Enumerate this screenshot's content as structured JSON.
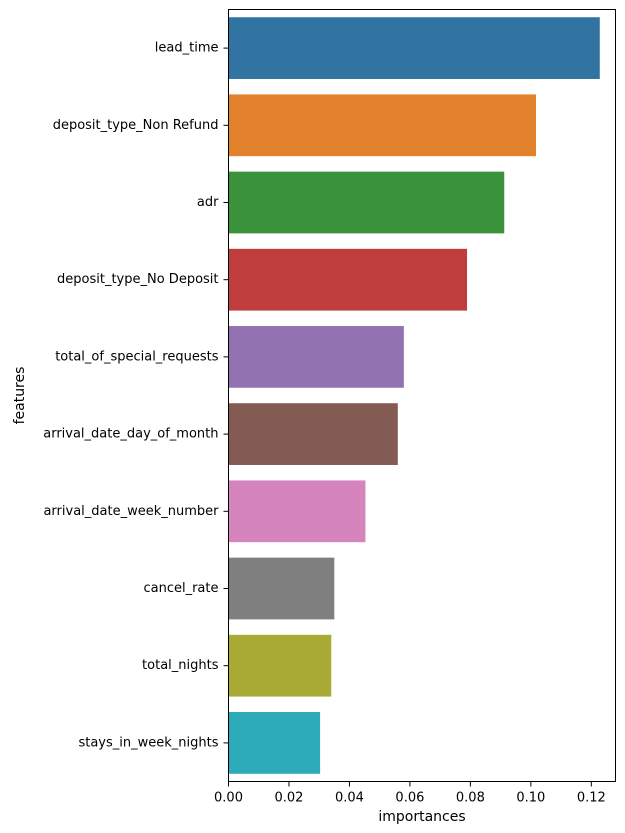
{
  "chart_data": {
    "type": "bar",
    "orientation": "horizontal",
    "title": "",
    "xlabel": "importances",
    "ylabel": "features",
    "xlim": [
      0,
      0.128
    ],
    "xticks": [
      0.0,
      0.02,
      0.04,
      0.06,
      0.08,
      0.1,
      0.12
    ],
    "xtick_labels": [
      "0.00",
      "0.02",
      "0.04",
      "0.06",
      "0.08",
      "0.10",
      "0.12"
    ],
    "grid": false,
    "legend": "none",
    "categories": [
      "lead_time",
      "deposit_type_Non Refund",
      "adr",
      "deposit_type_No Deposit",
      "total_of_special_requests",
      "arrival_date_day_of_month",
      "arrival_date_week_number",
      "cancel_rate",
      "total_nights",
      "stays_in_week_nights"
    ],
    "values": [
      0.1228,
      0.1017,
      0.0912,
      0.0789,
      0.058,
      0.056,
      0.0453,
      0.035,
      0.034,
      0.0303
    ],
    "colors": [
      "#3274a1",
      "#e1812c",
      "#3a923a",
      "#c03d3e",
      "#9372b2",
      "#845b53",
      "#d684bd",
      "#7f7f7f",
      "#a9aa35",
      "#2eabb8"
    ]
  }
}
